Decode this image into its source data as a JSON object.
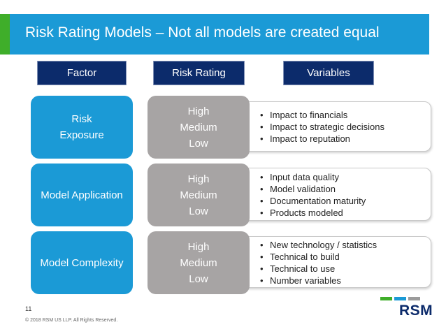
{
  "title": "Risk Rating Models – Not all models are created equal",
  "headers": {
    "factor": "Factor",
    "risk_rating": "Risk Rating",
    "variables": "Variables"
  },
  "rows": [
    {
      "factor_line1": "Risk",
      "factor_line2": "Exposure",
      "ratings": [
        "High",
        "Medium",
        "Low"
      ],
      "variables": [
        "Impact to financials",
        "Impact to strategic decisions",
        "Impact to reputation"
      ]
    },
    {
      "factor_line1": "Model Application",
      "factor_line2": "",
      "ratings": [
        "High",
        "Medium",
        "Low"
      ],
      "variables": [
        "Input data quality",
        "Model validation",
        "Documentation maturity",
        "Products modeled"
      ]
    },
    {
      "factor_line1": "Model Complexity",
      "factor_line2": "",
      "ratings": [
        "High",
        "Medium",
        "Low"
      ],
      "variables": [
        "New technology / statistics",
        "Technical to build",
        "Technical to use",
        "Number variables"
      ]
    }
  ],
  "footer": {
    "page_number": "11",
    "copyright": "© 2018 RSM US LLP. All Rights Reserved.",
    "logo_text": "RSM"
  },
  "colors": {
    "title_bar": "#1b9ad6",
    "title_accent": "#3fae2a",
    "header_box": "#0c2b6b",
    "factor_box": "#1b9ad6",
    "rating_box": "#a7a4a4",
    "logo_text": "#0c2b6b",
    "logo_green": "#3fae2a",
    "logo_blue": "#1b9ad6",
    "logo_gray": "#9b9b9b"
  }
}
